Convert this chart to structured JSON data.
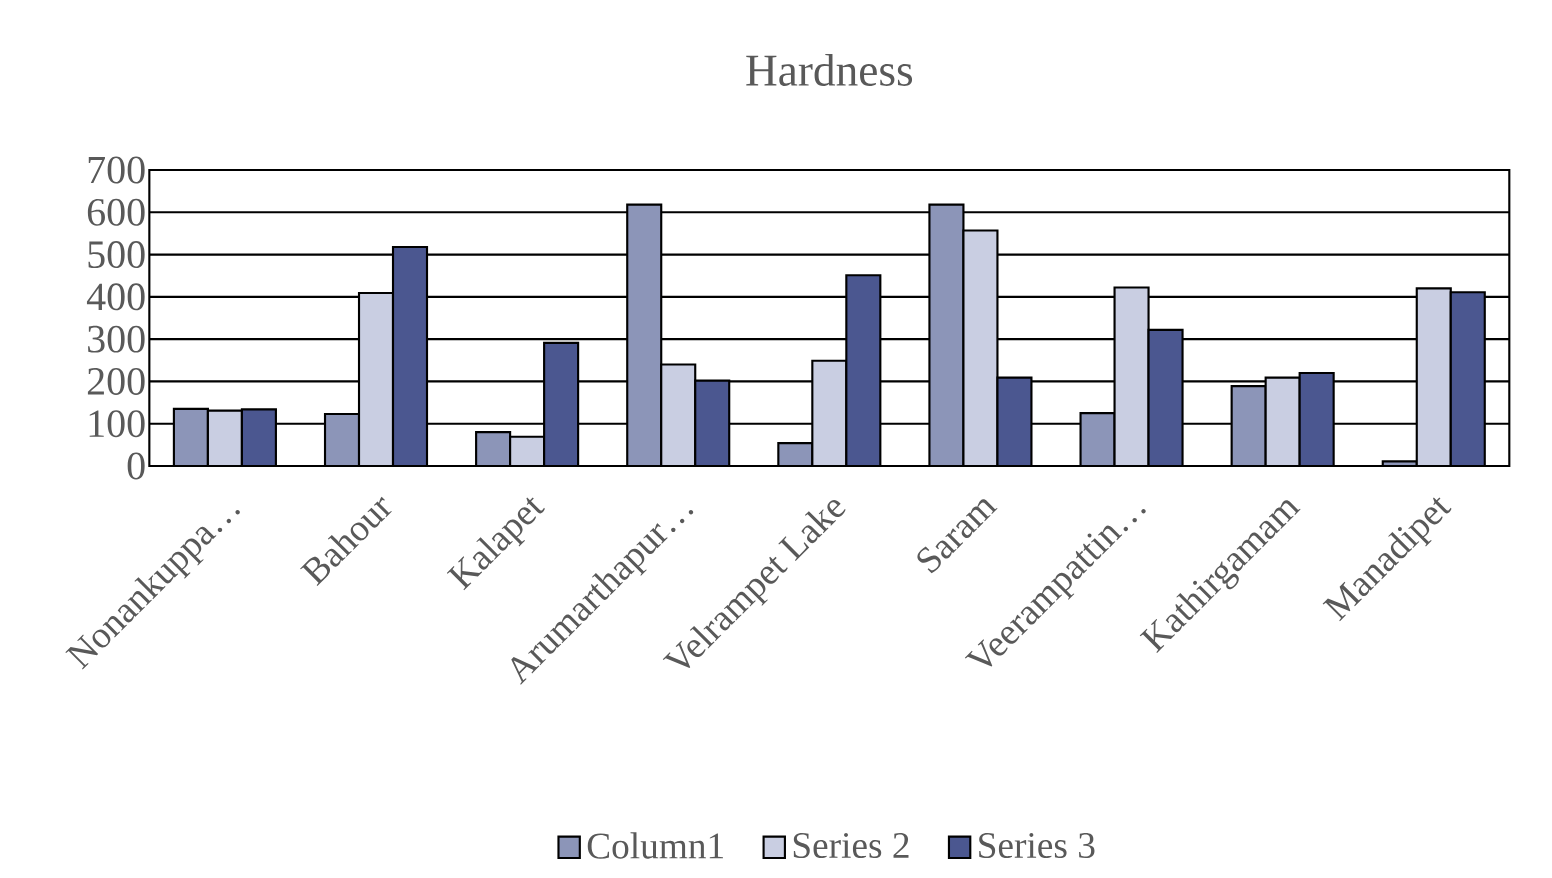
{
  "chart_data": {
    "type": "bar",
    "title": "Hardness",
    "categories": [
      "Nonankuppa…",
      "Bahour",
      "Kalapet",
      "Arumarthapur…",
      "Velrampet Lake",
      "Saram",
      "Veerampattin…",
      "Kathirgamam",
      "Manadipet"
    ],
    "series": [
      {
        "name": "Column1",
        "color": "#8c95b8",
        "values": [
          135,
          123,
          80,
          618,
          54,
          618,
          125,
          189,
          11
        ]
      },
      {
        "name": "Series 2",
        "color": "#c9cee2",
        "values": [
          131,
          409,
          69,
          240,
          249,
          557,
          422,
          209,
          420
        ]
      },
      {
        "name": "Series 3",
        "color": "#4b5790",
        "values": [
          134,
          518,
          291,
          202,
          451,
          209,
          322,
          220,
          411
        ]
      }
    ],
    "ylim": [
      0,
      700
    ],
    "yticks": [
      0,
      100,
      200,
      300,
      400,
      500,
      600,
      700
    ],
    "grid": "y",
    "legend": "bottom"
  }
}
